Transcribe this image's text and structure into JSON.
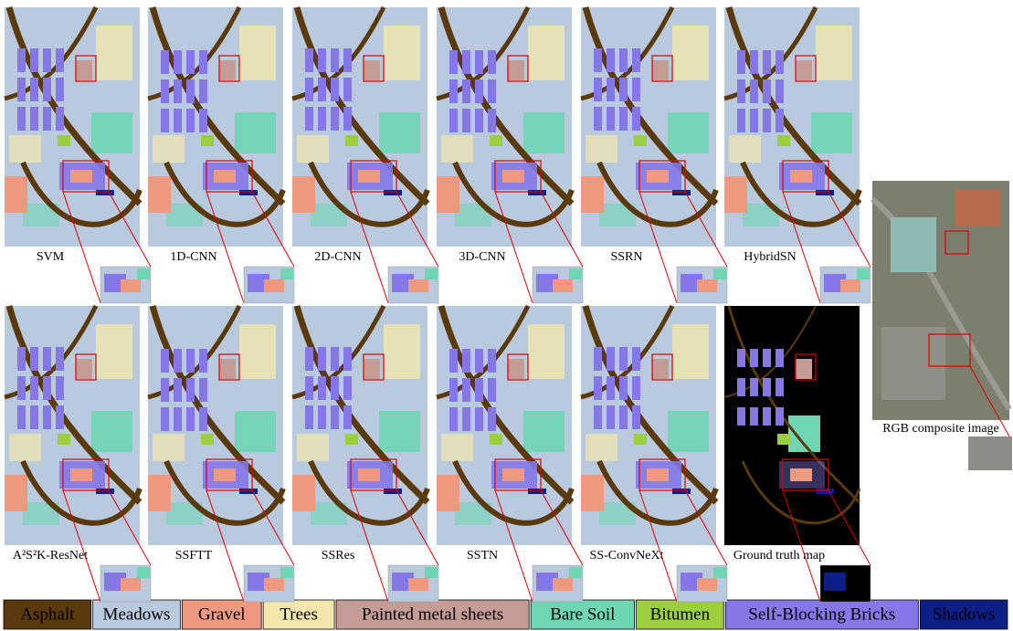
{
  "maps": [
    {
      "label": "SVM"
    },
    {
      "label": "1D-CNN"
    },
    {
      "label": "2D-CNN"
    },
    {
      "label": "3D-CNN"
    },
    {
      "label": "SSRN"
    },
    {
      "label": "HybridSN"
    },
    {
      "label": "A²S²K-ResNet"
    },
    {
      "label": "SSFTT"
    },
    {
      "label": "SSRes"
    },
    {
      "label": "SSTN"
    },
    {
      "label": "SS-ConvNeXt"
    },
    {
      "label": "Ground truth map"
    }
  ],
  "rgb_label": "RGB composite image",
  "legend": [
    {
      "name": "Asphalt",
      "color": "#5a3a0c"
    },
    {
      "name": "Meadows",
      "color": "#b9c9de"
    },
    {
      "name": "Gravel",
      "color": "#ef9a80"
    },
    {
      "name": "Trees",
      "color": "#f3e7ad"
    },
    {
      "name": "Painted metal sheets",
      "color": "#c49b95"
    },
    {
      "name": "Bare Soil",
      "color": "#6fd6b4"
    },
    {
      "name": "Bitumen",
      "color": "#9ccf40"
    },
    {
      "name": "Self-Blocking Bricks",
      "color": "#8577e8"
    },
    {
      "name": "Shadows",
      "color": "#0c1f86"
    }
  ]
}
